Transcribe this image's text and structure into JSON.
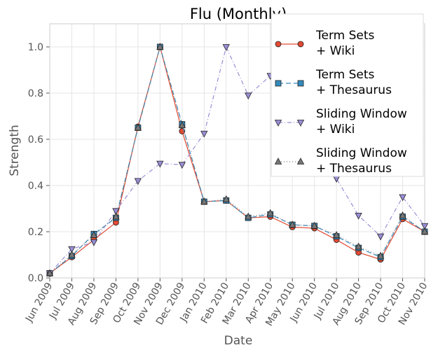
{
  "chart_data": {
    "type": "line",
    "title": "Flu (Monthly)",
    "x_label": "Date",
    "y_label": "Strength",
    "categories": [
      "Jun 2009",
      "Jul 2009",
      "Aug 2009",
      "Sep 2009",
      "Oct 2009",
      "Nov 2009",
      "Dec 2009",
      "Jan 2010",
      "Feb 2010",
      "Mar 2010",
      "Apr 2010",
      "May 2010",
      "Jun 2010",
      "Jul 2010",
      "Aug 2010",
      "Sep 2010",
      "Oct 2010",
      "Nov 2010"
    ],
    "series": [
      {
        "name": "Term Sets\n+ Wiki",
        "color": "#e24a33",
        "marker": "circle",
        "dash": "",
        "values": [
          0.02,
          0.09,
          0.165,
          0.24,
          0.655,
          1.0,
          0.635,
          0.33,
          0.335,
          0.26,
          0.265,
          0.22,
          0.215,
          0.165,
          0.11,
          0.08,
          0.255,
          0.2
        ]
      },
      {
        "name": "Term Sets\n+ Thesaurus",
        "color": "#348abd",
        "marker": "square",
        "dash": "7 4",
        "values": [
          0.02,
          0.095,
          0.19,
          0.26,
          0.65,
          1.0,
          0.665,
          0.33,
          0.335,
          0.26,
          0.275,
          0.23,
          0.225,
          0.18,
          0.13,
          0.09,
          0.265,
          0.2
        ]
      },
      {
        "name": "Sliding Window\n+ Wiki",
        "color": "#988ed5",
        "marker": "triangle-down",
        "dash": "6 3 1 3",
        "values": [
          0.02,
          0.125,
          0.155,
          0.29,
          0.42,
          0.495,
          0.49,
          0.625,
          1.0,
          0.79,
          0.875,
          0.82,
          0.6,
          0.43,
          0.27,
          0.18,
          0.35,
          0.225
        ]
      },
      {
        "name": "Sliding Window\n+ Thesaurus",
        "color": "#777777",
        "marker": "triangle-up",
        "dash": "1 3",
        "values": [
          0.02,
          0.1,
          0.185,
          0.265,
          0.65,
          1.0,
          0.66,
          0.33,
          0.34,
          0.265,
          0.28,
          0.23,
          0.225,
          0.185,
          0.135,
          0.095,
          0.27,
          0.2
        ]
      }
    ],
    "ylim": [
      0,
      1.1
    ],
    "yticks": [
      {
        "value": 0,
        "label": "0.0"
      },
      0.2,
      0.4,
      0.6,
      0.8,
      {
        "value": 1,
        "label": "1.0"
      }
    ],
    "grid": true,
    "legend": "upper right"
  }
}
